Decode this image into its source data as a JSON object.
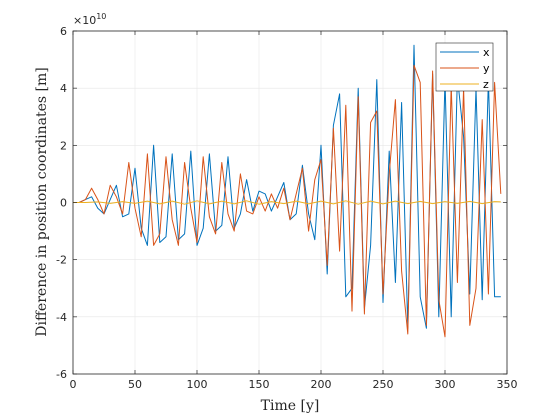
{
  "chart_data": {
    "type": "line",
    "title": "",
    "xlabel": "Time [y]",
    "ylabel": "Difference in position coordinates [m]",
    "y_exponent_label": "×10",
    "y_exponent_power": "10",
    "y_scale": 10000000000,
    "xlim": [
      0,
      350
    ],
    "ylim": [
      -60000000000,
      60000000000
    ],
    "x_ticks": [
      0,
      50,
      100,
      150,
      200,
      250,
      300,
      350
    ],
    "x_tick_labels": [
      "0",
      "50",
      "100",
      "150",
      "200",
      "250",
      "300",
      "350"
    ],
    "y_ticks": [
      -6,
      -4,
      -2,
      0,
      2,
      4,
      6
    ],
    "y_tick_labels": [
      "-6",
      "-4",
      "-2",
      "0",
      "2",
      "4",
      "6"
    ],
    "grid": true,
    "box": true,
    "legend_position": "top-right",
    "colors": {
      "x": "#0072BD",
      "y": "#D95319",
      "z": "#EDB120",
      "grid": "#e6e6e6",
      "axes": "#262626"
    },
    "series": [
      {
        "name": "x",
        "key": "x",
        "x": [
          0,
          5,
          10,
          15,
          20,
          25,
          30,
          35,
          40,
          45,
          50,
          55,
          60,
          65,
          70,
          75,
          80,
          85,
          90,
          95,
          100,
          105,
          110,
          115,
          120,
          125,
          130,
          135,
          140,
          145,
          150,
          155,
          160,
          165,
          170,
          175,
          180,
          185,
          190,
          195,
          200,
          205,
          210,
          215,
          220,
          225,
          230,
          235,
          240,
          245,
          250,
          255,
          260,
          265,
          270,
          275,
          280,
          285,
          290,
          295,
          300,
          305,
          310,
          315,
          320,
          325,
          330,
          335,
          340,
          345
        ],
        "y": [
          0,
          0,
          0.1,
          0.2,
          -0.2,
          -0.4,
          0.1,
          0.6,
          -0.5,
          -0.4,
          1.2,
          -0.9,
          -1.5,
          2.0,
          -1.4,
          -1.2,
          1.7,
          -1.3,
          -1.1,
          1.8,
          -1.5,
          -0.9,
          1.7,
          -1.0,
          -0.8,
          1.6,
          -0.9,
          -0.4,
          0.8,
          -0.3,
          0.4,
          0.3,
          -0.3,
          0.2,
          0.7,
          -0.6,
          -0.4,
          1.3,
          -0.4,
          -1.3,
          2.0,
          -2.5,
          2.7,
          3.8,
          -3.3,
          -3.0,
          4.0,
          -3.7,
          -1.5,
          4.3,
          -3.5,
          1.8,
          -2.8,
          3.5,
          -4.4,
          5.5,
          -3.3,
          -4.4,
          4.5,
          -4.0,
          4.3,
          -4.0,
          4.4,
          2.3,
          -3.2,
          4.0,
          -3.4,
          4.3,
          -3.3,
          -3.3
        ]
      },
      {
        "name": "y",
        "key": "y",
        "x": [
          0,
          5,
          10,
          15,
          20,
          25,
          30,
          35,
          40,
          45,
          50,
          55,
          60,
          65,
          70,
          75,
          80,
          85,
          90,
          95,
          100,
          105,
          110,
          115,
          120,
          125,
          130,
          135,
          140,
          145,
          150,
          155,
          160,
          165,
          170,
          175,
          180,
          185,
          190,
          195,
          200,
          205,
          210,
          215,
          220,
          225,
          230,
          235,
          240,
          245,
          250,
          255,
          260,
          265,
          270,
          275,
          280,
          285,
          290,
          295,
          300,
          305,
          310,
          315,
          320,
          325,
          330,
          335,
          340,
          345
        ],
        "y": [
          0,
          0,
          0.1,
          0.5,
          0.1,
          -0.4,
          0.6,
          0.2,
          -0.4,
          1.4,
          -0.2,
          -1.2,
          1.7,
          -1.5,
          -1.1,
          1.6,
          -0.6,
          -1.5,
          1.4,
          -0.2,
          -1.4,
          1.6,
          -0.5,
          -1.1,
          1.4,
          -0.4,
          -1.0,
          1.0,
          -0.3,
          -0.4,
          0.2,
          -0.3,
          0.3,
          -0.2,
          0.5,
          -0.6,
          0.3,
          1.2,
          -1.0,
          0.8,
          1.5,
          -2.2,
          2.6,
          -1.7,
          3.4,
          -3.8,
          3.7,
          -3.9,
          2.8,
          3.2,
          -3.2,
          1.0,
          3.6,
          -2.4,
          -4.6,
          4.8,
          4.2,
          -4.3,
          4.6,
          -3.4,
          -4.7,
          4.1,
          -2.8,
          4.0,
          -4.3,
          -3.0,
          2.9,
          -3.2,
          4.2,
          0.3
        ]
      },
      {
        "name": "z",
        "key": "z",
        "x": [
          0,
          10,
          20,
          30,
          40,
          50,
          60,
          70,
          80,
          90,
          100,
          110,
          120,
          130,
          140,
          150,
          160,
          170,
          180,
          190,
          200,
          210,
          220,
          230,
          240,
          250,
          260,
          270,
          280,
          290,
          300,
          310,
          320,
          330,
          340,
          345
        ],
        "y": [
          0,
          0,
          0.02,
          -0.03,
          0.03,
          -0.03,
          0.05,
          -0.05,
          0.05,
          -0.06,
          0.06,
          -0.05,
          0.05,
          -0.05,
          0.06,
          -0.06,
          0.03,
          -0.04,
          0.05,
          -0.05,
          0.05,
          -0.05,
          0.06,
          -0.06,
          0.05,
          -0.05,
          0.05,
          -0.04,
          0.04,
          -0.04,
          0.03,
          -0.03,
          0.04,
          -0.04,
          0.03,
          0.02
        ]
      }
    ]
  }
}
